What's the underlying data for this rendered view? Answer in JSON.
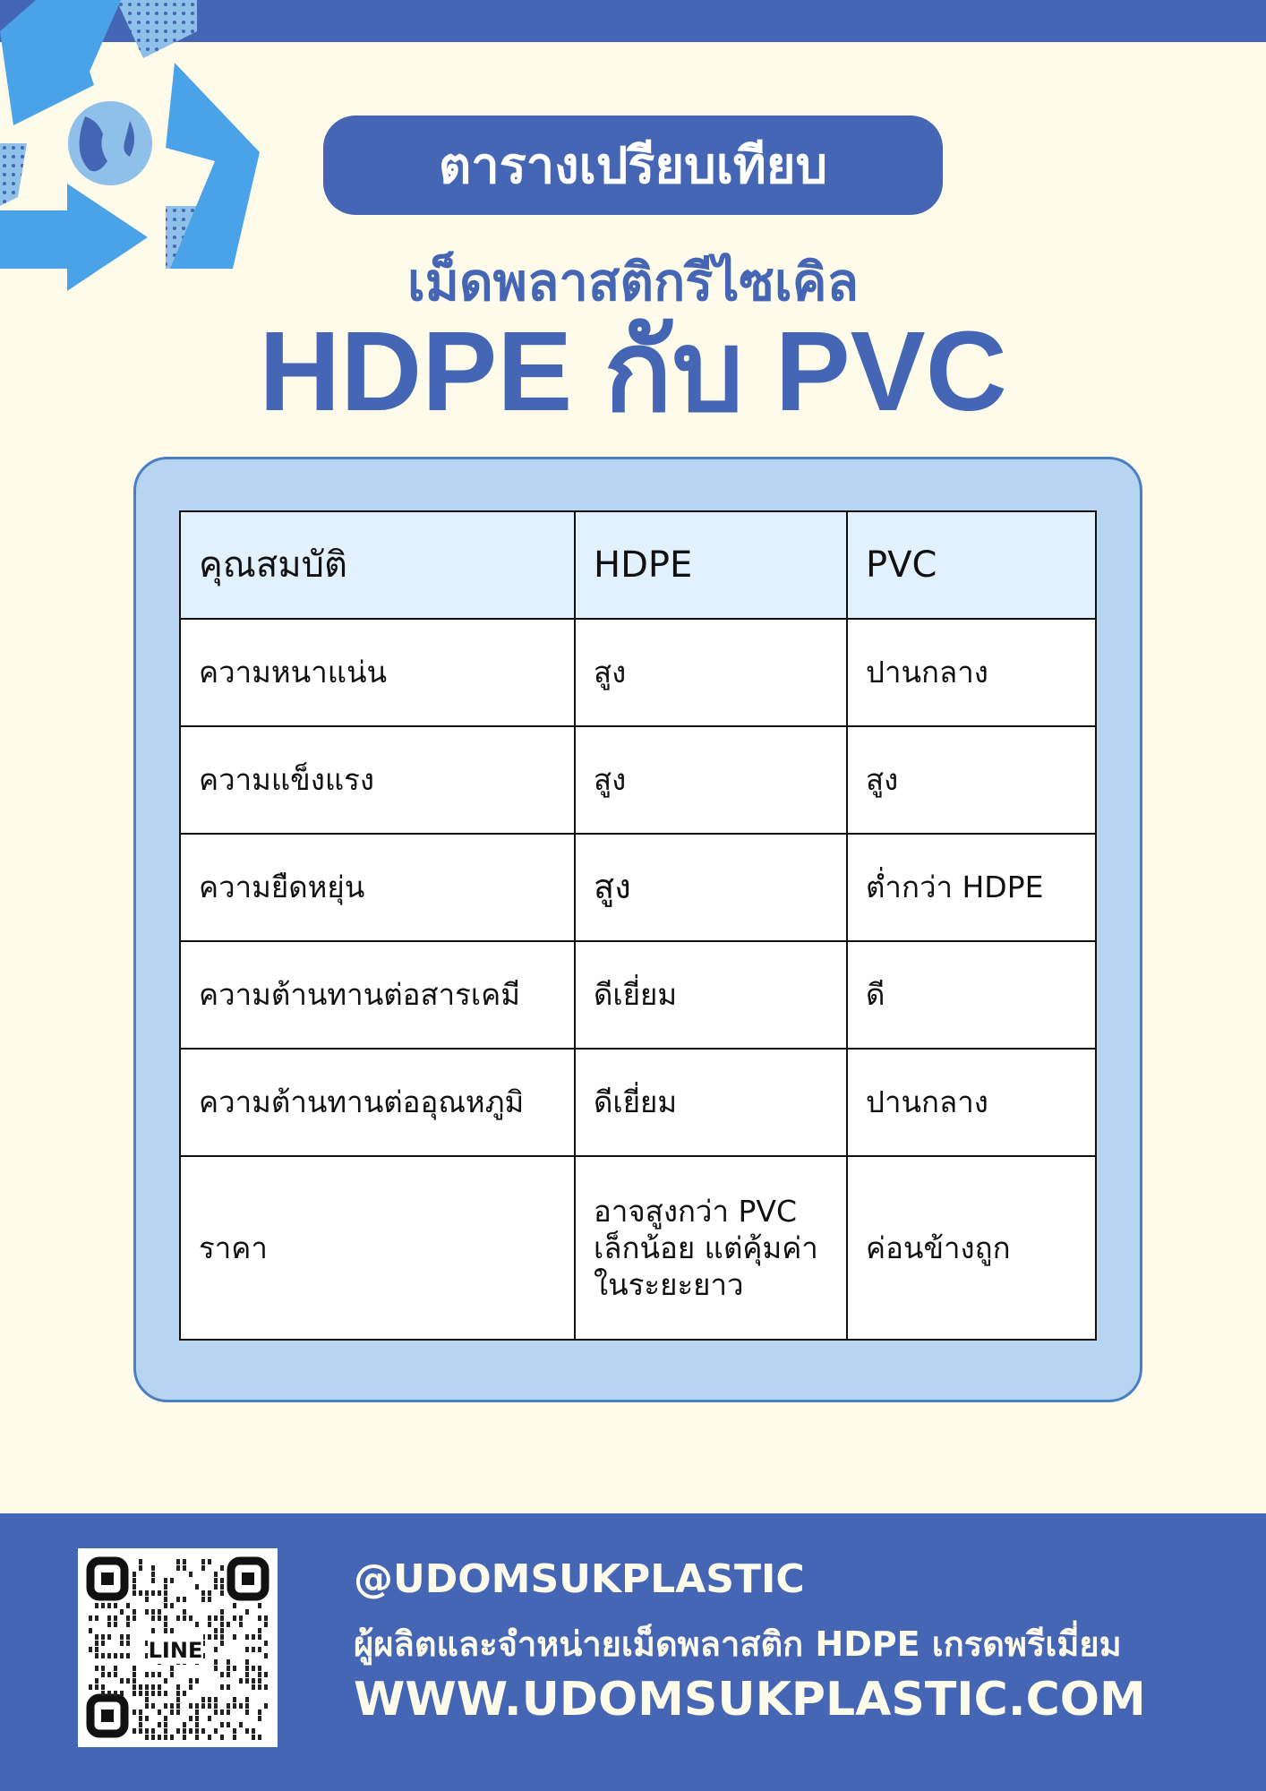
{
  "colors": {
    "brand_blue": "#4466b5",
    "background": "#fefbea",
    "card": "#b7d5f0",
    "header_cell": "#e1f1fd"
  },
  "header": {
    "badge": "ตารางเปรียบเทียบ",
    "subtitle": "เม็ดพลาสติกรีไซเคิล",
    "title": "HDPE กับ PVC"
  },
  "table": {
    "columns": [
      "คุณสมบัติ",
      "HDPE",
      "PVC"
    ],
    "rows": [
      [
        "ความหนาแน่น",
        "สูง",
        "ปานกลาง"
      ],
      [
        "ความแข็งแรง",
        "สูง",
        "สูง"
      ],
      [
        "ความยืดหยุ่น",
        "สูง",
        "ต่ำกว่า HDPE"
      ],
      [
        "ความต้านทานต่อสารเคมี",
        "ดีเยี่ยม",
        "ดี"
      ],
      [
        "ความต้านทานต่ออุณหภูมิ",
        "ดีเยี่ยม",
        "ปานกลาง"
      ],
      [
        "ราคา",
        "อาจสูงกว่า PVC เล็กน้อย แต่คุ้มค่าในระยะยาว",
        "ค่อนข้างถูก"
      ]
    ]
  },
  "footer": {
    "qr_label": "LINE",
    "handle": "@UDOMSUKPLASTIC",
    "tagline": "ผู้ผลิตและจำหน่ายเม็ดพลาสติก HDPE เกรดพรีเมี่ยม",
    "website": "WWW.UDOMSUKPLASTIC.COM"
  }
}
